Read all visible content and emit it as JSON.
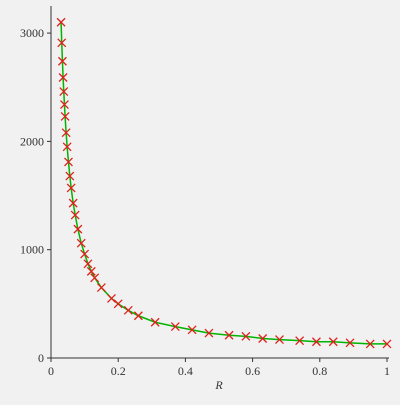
{
  "chart_data": {
    "type": "line",
    "x_label": "R",
    "x": [
      0.03,
      0.032,
      0.034,
      0.036,
      0.038,
      0.04,
      0.042,
      0.045,
      0.048,
      0.052,
      0.056,
      0.06,
      0.066,
      0.072,
      0.08,
      0.09,
      0.1,
      0.11,
      0.12,
      0.13,
      0.15,
      0.18,
      0.2,
      0.23,
      0.26,
      0.31,
      0.37,
      0.42,
      0.47,
      0.53,
      0.58,
      0.63,
      0.68,
      0.74,
      0.79,
      0.84,
      0.89,
      0.95,
      1.0
    ],
    "series": [
      {
        "line_color": "#00b400",
        "marker_color": "#e0201a",
        "values": [
          3100,
          2910,
          2740,
          2590,
          2460,
          2340,
          2230,
          2080,
          1950,
          1810,
          1680,
          1570,
          1430,
          1320,
          1190,
          1060,
          960,
          870,
          800,
          740,
          650,
          550,
          500,
          440,
          390,
          330,
          290,
          260,
          230,
          210,
          200,
          180,
          170,
          160,
          150,
          150,
          140,
          130,
          130
        ]
      }
    ],
    "xlim": [
      0,
      1
    ],
    "ylim": [
      0,
      3250
    ],
    "xticks": [
      0,
      0.2,
      0.4,
      0.6,
      0.8,
      1
    ],
    "yticks": [
      0,
      1000,
      2000,
      3000
    ]
  }
}
